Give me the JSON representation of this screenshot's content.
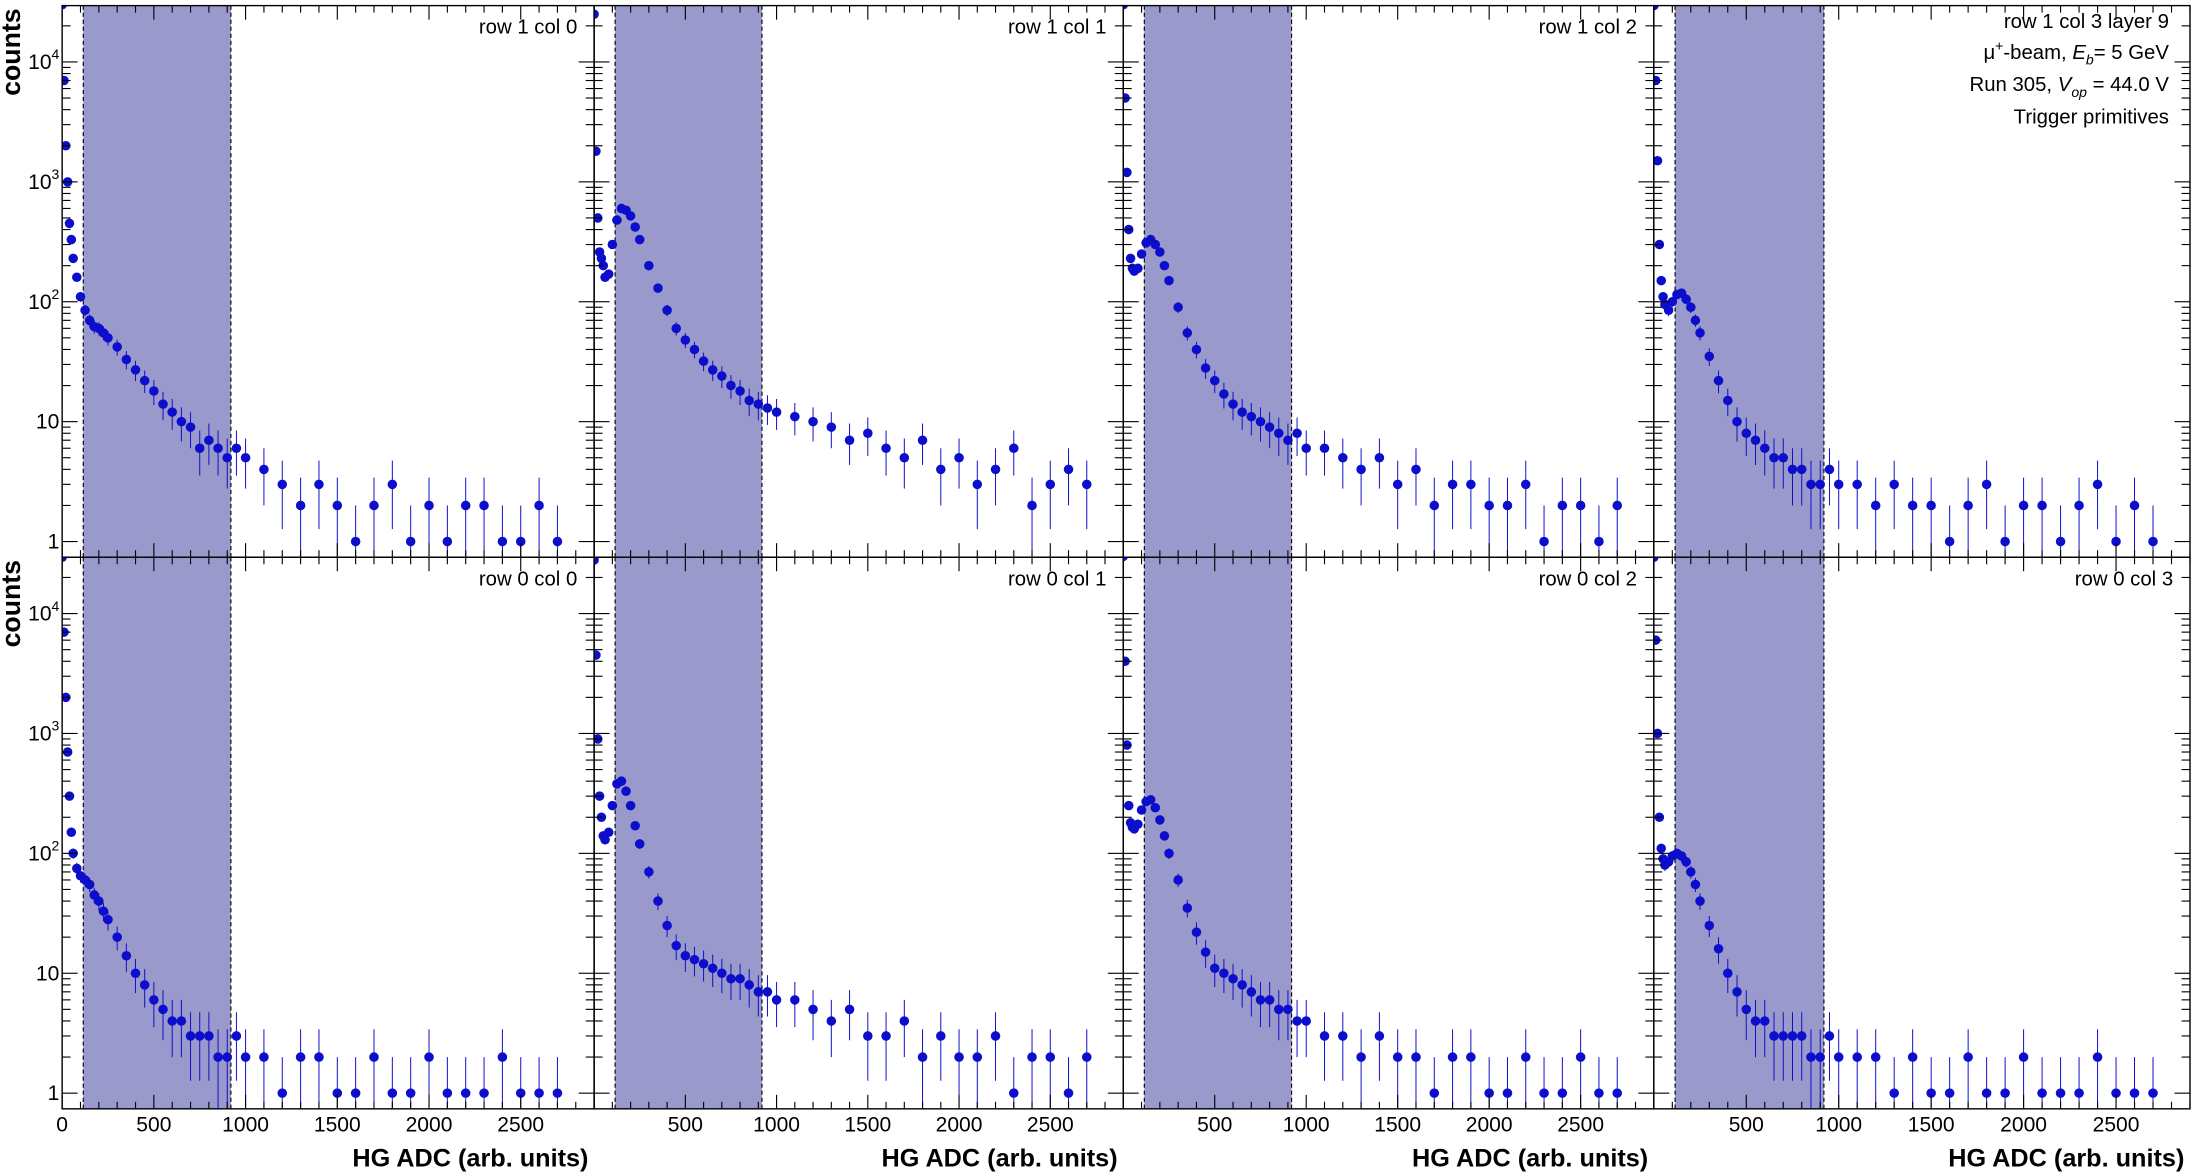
{
  "chart_data": {
    "type": "scatter",
    "layout": "2x4 grid",
    "xlabel": "HG ADC (arb. units)",
    "ylabel": "counts",
    "yscale": "log",
    "xlim": [
      0,
      2900
    ],
    "ylim": [
      0.74,
      29500
    ],
    "xticks": [
      "0",
      "500",
      "1000",
      "1500",
      "2000",
      "2500"
    ],
    "xtick_values": [
      0,
      500,
      1000,
      1500,
      2000,
      2500
    ],
    "yticks": [
      {
        "base": "1",
        "exp": "",
        "v": 1
      },
      {
        "base": "10",
        "exp": "",
        "v": 10
      },
      {
        "base": "10",
        "exp": "2",
        "v": 100
      },
      {
        "base": "10",
        "exp": "3",
        "v": 1000
      },
      {
        "base": "10",
        "exp": "4",
        "v": 10000
      }
    ],
    "shaded_region": [
      115,
      920
    ],
    "shade_color": "#9999cc",
    "marker_color": "#0d0dcc",
    "info": {
      "line1": "row 1 col 3 layer 9",
      "line2": {
        "mu": "μ",
        "plus": "+",
        "beam": "-beam,  ",
        "E": "E",
        "b": "b",
        "rest": "= 5 GeV"
      },
      "line3": {
        "run": "Run 305,  ",
        "V": "V",
        "op": "op",
        "rest": " = 44.0 V"
      },
      "line4": "Trigger primitives"
    },
    "x": [
      0,
      10,
      20,
      30,
      40,
      50,
      60,
      80,
      100,
      125,
      150,
      175,
      200,
      225,
      250,
      300,
      350,
      400,
      450,
      500,
      550,
      600,
      650,
      700,
      750,
      800,
      850,
      900,
      950,
      1000,
      1100,
      1200,
      1300,
      1400,
      1500,
      1600,
      1700,
      1800,
      1900,
      2000,
      2100,
      2200,
      2300,
      2400,
      2500,
      2600,
      2700
    ],
    "panels": [
      {
        "title": "row 1 col 0",
        "row": 1,
        "col": 0,
        "values": [
          30000,
          7000,
          2000,
          1000,
          450,
          330,
          230,
          160,
          110,
          85,
          70,
          62,
          60,
          55,
          50,
          42,
          33,
          27,
          22,
          18,
          14,
          12,
          10,
          9,
          6,
          7,
          6,
          5,
          6,
          5,
          4,
          3,
          2,
          3,
          2,
          1,
          2,
          3,
          1,
          2,
          1,
          2,
          2,
          1,
          1,
          2,
          1
        ]
      },
      {
        "title": "row 1 col 1",
        "row": 1,
        "col": 1,
        "values": [
          25000,
          1800,
          500,
          260,
          230,
          200,
          160,
          170,
          300,
          480,
          600,
          580,
          520,
          420,
          330,
          200,
          130,
          85,
          60,
          48,
          40,
          32,
          27,
          24,
          20,
          18,
          15,
          14,
          13,
          12,
          11,
          10,
          9,
          7,
          8,
          6,
          5,
          7,
          4,
          5,
          3,
          4,
          6,
          2,
          3,
          4,
          3
        ]
      },
      {
        "title": "row 1 col 2",
        "row": 1,
        "col": 2,
        "values": [
          30000,
          5000,
          1200,
          400,
          230,
          190,
          180,
          190,
          250,
          310,
          330,
          300,
          260,
          200,
          150,
          90,
          55,
          40,
          28,
          22,
          17,
          14,
          12,
          11,
          10,
          9,
          8,
          7,
          8,
          6,
          6,
          5,
          4,
          5,
          3,
          4,
          2,
          3,
          3,
          2,
          2,
          3,
          1,
          2,
          2,
          1,
          2
        ]
      },
      {
        "title": "",
        "row": 1,
        "col": 3,
        "values": [
          32000,
          7000,
          1500,
          300,
          150,
          110,
          95,
          85,
          100,
          115,
          118,
          105,
          90,
          70,
          55,
          35,
          22,
          15,
          10,
          8,
          7,
          6,
          5,
          5,
          4,
          4,
          3,
          3,
          4,
          3,
          3,
          2,
          3,
          2,
          2,
          1,
          2,
          3,
          1,
          2,
          2,
          1,
          2,
          3,
          1,
          2,
          1
        ]
      },
      {
        "title": "row 0 col 0",
        "row": 0,
        "col": 0,
        "values": [
          35000,
          7000,
          2000,
          700,
          300,
          150,
          100,
          75,
          65,
          60,
          55,
          45,
          40,
          33,
          28,
          20,
          14,
          10,
          8,
          6,
          5,
          4,
          4,
          3,
          3,
          3,
          2,
          2,
          3,
          2,
          2,
          1,
          2,
          2,
          1,
          1,
          2,
          1,
          1,
          2,
          1,
          1,
          1,
          2,
          1,
          1,
          1
        ]
      },
      {
        "title": "row 0 col 1",
        "row": 0,
        "col": 1,
        "values": [
          28000,
          4500,
          900,
          300,
          200,
          140,
          130,
          150,
          250,
          380,
          400,
          330,
          250,
          170,
          120,
          70,
          40,
          25,
          17,
          14,
          13,
          12,
          11,
          10,
          9,
          9,
          8,
          7,
          7,
          6,
          6,
          5,
          4,
          5,
          3,
          3,
          4,
          2,
          3,
          2,
          2,
          3,
          1,
          2,
          2,
          1,
          2
        ]
      },
      {
        "title": "row 0 col 2",
        "row": 0,
        "col": 2,
        "values": [
          30000,
          4000,
          800,
          250,
          180,
          165,
          160,
          175,
          230,
          270,
          280,
          240,
          190,
          140,
          100,
          60,
          35,
          22,
          15,
          11,
          10,
          9,
          8,
          7,
          6,
          6,
          5,
          5,
          4,
          4,
          3,
          3,
          2,
          3,
          2,
          2,
          1,
          2,
          2,
          1,
          1,
          2,
          1,
          1,
          2,
          1,
          1
        ]
      },
      {
        "title": "row 0 col 3",
        "row": 0,
        "col": 3,
        "values": [
          33000,
          6000,
          1000,
          200,
          110,
          90,
          80,
          85,
          95,
          100,
          95,
          85,
          70,
          55,
          40,
          25,
          16,
          10,
          7,
          5,
          4,
          4,
          3,
          3,
          3,
          3,
          2,
          2,
          3,
          2,
          2,
          2,
          1,
          2,
          1,
          1,
          2,
          1,
          1,
          2,
          1,
          1,
          1,
          2,
          1,
          1,
          1
        ]
      }
    ]
  }
}
